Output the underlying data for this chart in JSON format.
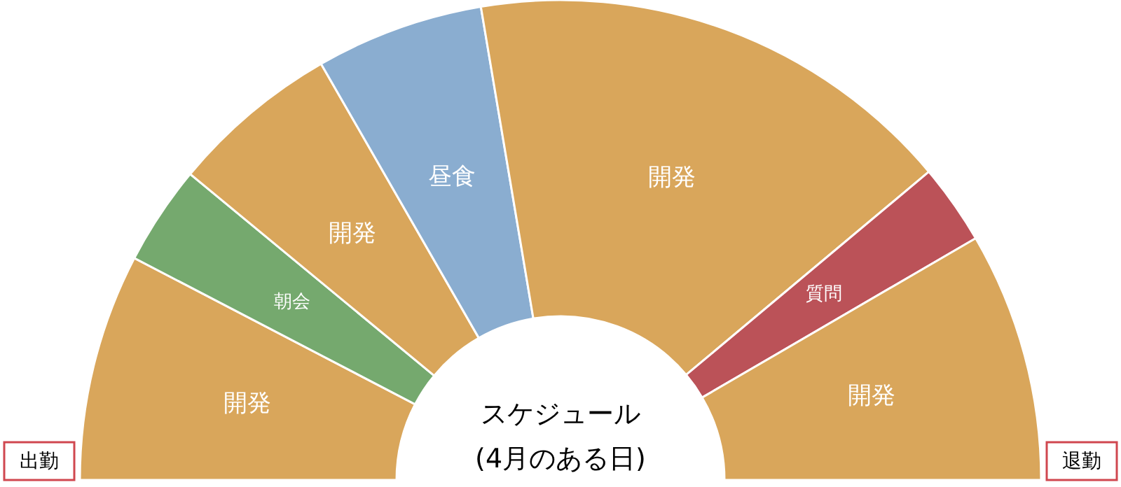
{
  "chart_data": {
    "type": "donut",
    "title": "スケジュール",
    "subtitle": "(4月のある日)",
    "categories": [
      "開発",
      "朝会",
      "開発",
      "昼食",
      "開発",
      "質問",
      "開発"
    ],
    "values": [
      15.3,
      6.7,
      11.4,
      11.3,
      33.1,
      5.4,
      16.8
    ],
    "colors": [
      "#d9a65b",
      "#75a96e",
      "#d9a65b",
      "#8aadd0",
      "#d9a65b",
      "#bb5258",
      "#d9a65b"
    ],
    "annotations": [
      "出勤",
      "退勤"
    ]
  }
}
